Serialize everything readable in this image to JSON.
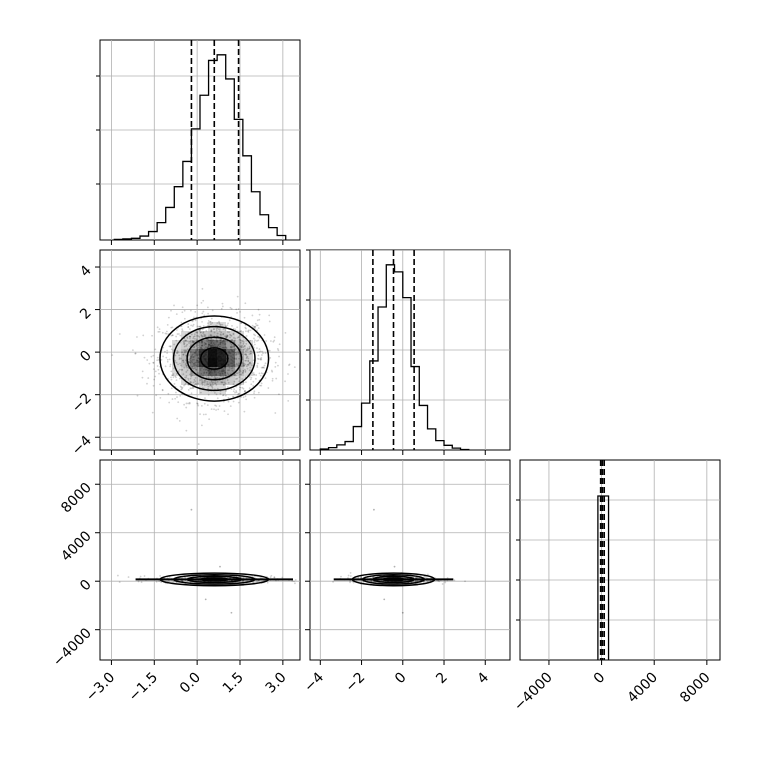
{
  "chart_data": {
    "type": "corner",
    "title": "",
    "xlabel": "",
    "ylabel": "",
    "grid": true,
    "tick_labels": {
      "x_param0": [
        "−3.0",
        "−1.5",
        "0.0",
        "1.5",
        "3.0"
      ],
      "x_param1": [
        "−4",
        "−2",
        "0",
        "2",
        "4"
      ],
      "x_param2": [
        "−4000",
        "0",
        "4000",
        "8000"
      ],
      "y_param1": [
        "4",
        "2",
        "0",
        "−2",
        "−4"
      ],
      "y_param2": [
        "8000",
        "4000",
        "0",
        "−4000"
      ]
    },
    "panels": [
      {
        "id": "hist-param0",
        "type": "histogram",
        "xlim": [
          -3.4,
          3.6
        ],
        "ticks": [
          -3.0,
          -1.5,
          0.0,
          1.5,
          3.0
        ],
        "quantiles": [
          -0.2,
          0.6,
          1.45
        ],
        "bin_edges": [
          -2.9,
          -2.6,
          -2.3,
          -2.0,
          -1.7,
          -1.4,
          -1.1,
          -0.8,
          -0.5,
          -0.2,
          0.1,
          0.4,
          0.7,
          1.0,
          1.3,
          1.6,
          1.9,
          2.2,
          2.5,
          2.8,
          3.1
        ],
        "counts": [
          1,
          2,
          3,
          7,
          15,
          31,
          58,
          95,
          140,
          198,
          258,
          320,
          330,
          287,
          215,
          150,
          86,
          45,
          22,
          8
        ]
      },
      {
        "id": "hist-param1",
        "type": "histogram",
        "xlim": [
          -4.5,
          5.2
        ],
        "ticks": [
          -4,
          -2,
          0,
          2,
          4
        ],
        "quantiles": [
          -1.45,
          -0.45,
          0.55
        ],
        "bin_edges": [
          -4.0,
          -3.6,
          -3.2,
          -2.8,
          -2.4,
          -2.0,
          -1.6,
          -1.2,
          -0.8,
          -0.4,
          0.0,
          0.4,
          0.8,
          1.2,
          1.6,
          2.0,
          2.4,
          2.8,
          3.2
        ],
        "counts": [
          2,
          5,
          11,
          18,
          50,
          100,
          190,
          305,
          395,
          380,
          325,
          178,
          95,
          45,
          20,
          10,
          4,
          1
        ]
      },
      {
        "id": "hist-param2",
        "type": "histogram",
        "xlim": [
          -6200,
          9000
        ],
        "ticks": [
          -4000,
          0,
          4000,
          8000
        ],
        "quantiles": [
          -70,
          60,
          200
        ],
        "bin_edges": [
          -280,
          0,
          530
        ],
        "counts": [
          1000,
          1000
        ]
      },
      {
        "id": "scatter-param0-param1",
        "type": "2d-density",
        "xlim": [
          -3.4,
          3.6
        ],
        "ylim": [
          -4.6,
          4.8
        ],
        "center": [
          0.6,
          -0.3
        ],
        "spread": [
          0.95,
          1.0
        ],
        "contour_levels_sigma": [
          0.5,
          1.0,
          1.5,
          2.0
        ],
        "xticks": [
          -3.0,
          -1.5,
          0.0,
          1.5,
          3.0
        ],
        "yticks": [
          -4,
          -2,
          0,
          2,
          4
        ]
      },
      {
        "id": "scatter-param0-param2",
        "type": "2d-density",
        "xlim": [
          -3.4,
          3.6
        ],
        "ylim": [
          -6500,
          10000
        ],
        "center": [
          0.6,
          150
        ],
        "spread": [
          0.95,
          300
        ],
        "contour_levels_sigma": [
          0.5,
          1.0,
          1.5,
          2.0
        ],
        "xticks": [
          -3.0,
          -1.5,
          0.0,
          1.5,
          3.0
        ],
        "yticks": [
          -4000,
          0,
          4000,
          8000
        ]
      },
      {
        "id": "scatter-param1-param2",
        "type": "2d-density",
        "xlim": [
          -4.5,
          5.2
        ],
        "ylim": [
          -6500,
          10000
        ],
        "center": [
          -0.45,
          150
        ],
        "spread": [
          1.0,
          300
        ],
        "contour_levels_sigma": [
          0.5,
          1.0,
          1.5,
          2.0
        ],
        "xticks": [
          -4,
          -2,
          0,
          2,
          4
        ],
        "yticks": [
          -4000,
          0,
          4000,
          8000
        ]
      }
    ]
  }
}
